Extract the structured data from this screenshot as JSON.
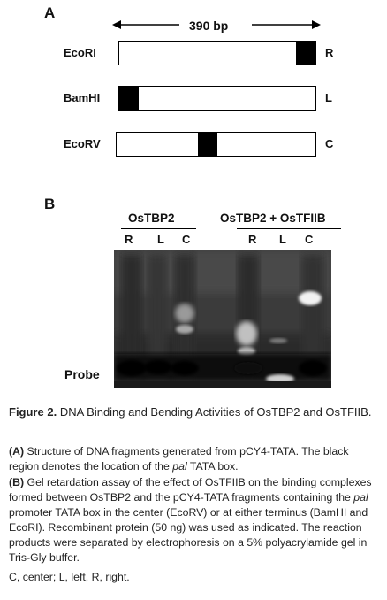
{
  "panel_a": {
    "label": "A",
    "span_label": "390 bp",
    "fragments": [
      {
        "name": "EcoRI",
        "end": "R"
      },
      {
        "name": "BamHI",
        "end": "L"
      },
      {
        "name": "EcoRV",
        "end": "C"
      }
    ]
  },
  "panel_b": {
    "label": "B",
    "group1": "OsTBP2",
    "group2": "OsTBP2 + OsTFIIB",
    "lanes": [
      "R",
      "L",
      "C",
      "R",
      "L",
      "C"
    ],
    "probe_label": "Probe"
  },
  "caption": {
    "figure_label": "Figure 2.",
    "figure_title": "DNA Binding and Bending Activities of OsTBP2 and OsTFIIB.",
    "a_label": "(A)",
    "a_text_1": "Structure of DNA fragments generated from pCY4-TATA. The black region denotes the location of the",
    "a_italic": "pal",
    "a_text_2": "TATA box.",
    "b_label": "(B)",
    "b_text_1": "Gel retardation assay of the effect of OsTFIIB on the binding complexes formed between OsTBP2 and the pCY4-TATA fragments containing the",
    "b_italic": "pal",
    "b_text_2": "promoter TATA box in the center (EcoRV) or at either terminus (BamHI and EcoRI). Recombinant protein (50 ng) was used as indicated. The reaction products were separated by electrophoresis on a 5% polyacrylamide gel in Tris-Gly buffer.",
    "abbrev": "C, center; L, left, R, right."
  }
}
